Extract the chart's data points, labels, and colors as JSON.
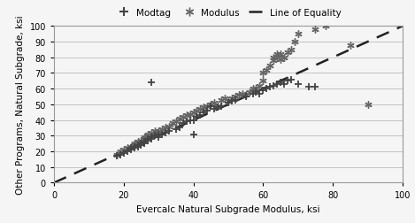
{
  "modtag_x": [
    18,
    19,
    20,
    21,
    22,
    22,
    23,
    23,
    24,
    24,
    25,
    25,
    26,
    26,
    27,
    27,
    28,
    28,
    29,
    30,
    30,
    31,
    32,
    33,
    35,
    36,
    37,
    38,
    39,
    40,
    41,
    42,
    43,
    44,
    45,
    46,
    47,
    48,
    50,
    51,
    52,
    55,
    57,
    58,
    59,
    60,
    61,
    62,
    63,
    64,
    65,
    66,
    67,
    68,
    70,
    73,
    75,
    28,
    40
  ],
  "modtag_y": [
    17,
    18,
    19,
    20,
    21,
    22,
    22,
    23,
    23,
    24,
    24,
    25,
    25,
    26,
    27,
    28,
    28,
    29,
    30,
    29,
    31,
    31,
    32,
    33,
    34,
    35,
    38,
    39,
    40,
    40,
    42,
    43,
    45,
    46,
    49,
    47,
    48,
    49,
    51,
    52,
    53,
    55,
    57,
    58,
    57,
    59,
    60,
    61,
    62,
    63,
    64,
    63,
    65,
    66,
    63,
    61,
    61,
    64,
    31
  ],
  "modulus_x": [
    18,
    19,
    20,
    21,
    22,
    23,
    23,
    24,
    24,
    25,
    25,
    26,
    26,
    27,
    27,
    28,
    28,
    29,
    29,
    30,
    30,
    31,
    32,
    33,
    34,
    35,
    36,
    37,
    38,
    39,
    40,
    41,
    42,
    43,
    44,
    45,
    46,
    47,
    48,
    49,
    50,
    51,
    52,
    53,
    54,
    55,
    56,
    57,
    58,
    59,
    60,
    60,
    61,
    62,
    63,
    63,
    64,
    64,
    65,
    65,
    66,
    67,
    68,
    69,
    70,
    75,
    78,
    90,
    85
  ],
  "modulus_y": [
    18,
    20,
    21,
    22,
    23,
    24,
    25,
    25,
    26,
    25,
    27,
    28,
    29,
    30,
    31,
    30,
    32,
    31,
    33,
    32,
    33,
    34,
    35,
    36,
    38,
    39,
    41,
    42,
    43,
    44,
    45,
    46,
    47,
    48,
    49,
    50,
    51,
    49,
    53,
    54,
    52,
    54,
    55,
    56,
    57,
    56,
    58,
    60,
    60,
    62,
    65,
    70,
    72,
    75,
    78,
    80,
    80,
    82,
    79,
    82,
    80,
    83,
    85,
    90,
    95,
    98,
    100,
    50,
    88
  ],
  "line_x": [
    0,
    100
  ],
  "line_y": [
    0,
    100
  ],
  "xlim": [
    0,
    100
  ],
  "ylim": [
    0,
    100
  ],
  "xticks": [
    0,
    20,
    40,
    60,
    80,
    100
  ],
  "yticks": [
    0,
    10,
    20,
    30,
    40,
    50,
    60,
    70,
    80,
    90,
    100
  ],
  "xlabel": "Evercalc Natural Subgrade Modulus, ksi",
  "ylabel": "Other Programs, Natural Subgrade, ksi",
  "modtag_color": "#444444",
  "modulus_color": "#666666",
  "line_color": "#222222",
  "background_color": "#f5f5f5",
  "legend_modtag": "Modtag",
  "legend_modulus": "Modulus",
  "legend_line": "Line of Equality"
}
